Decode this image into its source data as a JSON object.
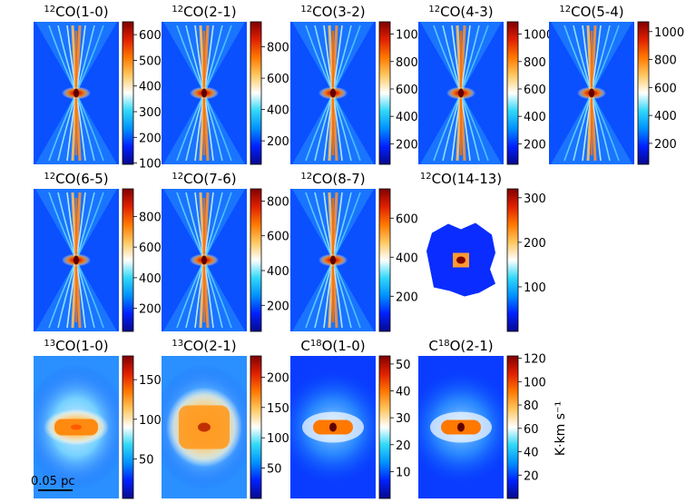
{
  "chart_data": {
    "type": "heatmap",
    "panels": [
      {
        "mol": "12CO",
        "trans": "(1-0)",
        "style": "outflow",
        "ticks": [
          100,
          200,
          300,
          400,
          500,
          600
        ],
        "vmin": 95,
        "vmax": 650
      },
      {
        "mol": "12CO",
        "trans": "(2-1)",
        "style": "outflow",
        "ticks": [
          200,
          400,
          600,
          800
        ],
        "vmin": 50,
        "vmax": 960
      },
      {
        "mol": "12CO",
        "trans": "(3-2)",
        "style": "outflow",
        "ticks": [
          200,
          400,
          600,
          800,
          1000
        ],
        "vmin": 50,
        "vmax": 1090
      },
      {
        "mol": "12CO",
        "trans": "(4-3)",
        "style": "outflow",
        "ticks": [
          200,
          400,
          600,
          800,
          1000
        ],
        "vmin": 50,
        "vmax": 1090
      },
      {
        "mol": "12CO",
        "trans": "(5-4)",
        "style": "outflow",
        "ticks": [
          200,
          400,
          600,
          800,
          1000
        ],
        "vmin": 50,
        "vmax": 1070
      },
      {
        "mol": "12CO",
        "trans": "(6-5)",
        "style": "outflow",
        "ticks": [
          200,
          400,
          600,
          800
        ],
        "vmin": 50,
        "vmax": 980
      },
      {
        "mol": "12CO",
        "trans": "(7-6)",
        "style": "outflow",
        "ticks": [
          200,
          400,
          600,
          800
        ],
        "vmin": 50,
        "vmax": 870
      },
      {
        "mol": "12CO",
        "trans": "(8-7)",
        "style": "outflow",
        "ticks": [
          200,
          400,
          600
        ],
        "vmin": 20,
        "vmax": 750
      },
      {
        "mol": "12CO",
        "trans": "(14-13)",
        "style": "compact",
        "ticks": [
          100,
          200,
          300
        ],
        "vmin": 0,
        "vmax": 320
      },
      {
        "mol": "13CO",
        "trans": "(1-0)",
        "style": "diffuse",
        "ticks": [
          50,
          100,
          150
        ],
        "vmin": 0,
        "vmax": 180
      },
      {
        "mol": "13CO",
        "trans": "(2-1)",
        "style": "diffuse2",
        "ticks": [
          50,
          100,
          150,
          200
        ],
        "vmin": 0,
        "vmax": 235
      },
      {
        "mol": "C18O",
        "trans": "(1-0)",
        "style": "core",
        "ticks": [
          10,
          20,
          30,
          40,
          50
        ],
        "vmin": 0,
        "vmax": 53
      },
      {
        "mol": "C18O",
        "trans": "(2-1)",
        "style": "core",
        "ticks": [
          20,
          40,
          60,
          80,
          100,
          120
        ],
        "vmin": 0,
        "vmax": 122
      }
    ],
    "colorbar_label": "K·km s⁻¹",
    "scale_bar_label": "0.05 pc",
    "colormap": [
      "#08088a",
      "#0020ff",
      "#0090ff",
      "#30d8f8",
      "#ffffff",
      "#ffc860",
      "#ff7800",
      "#e02000",
      "#800000"
    ]
  }
}
